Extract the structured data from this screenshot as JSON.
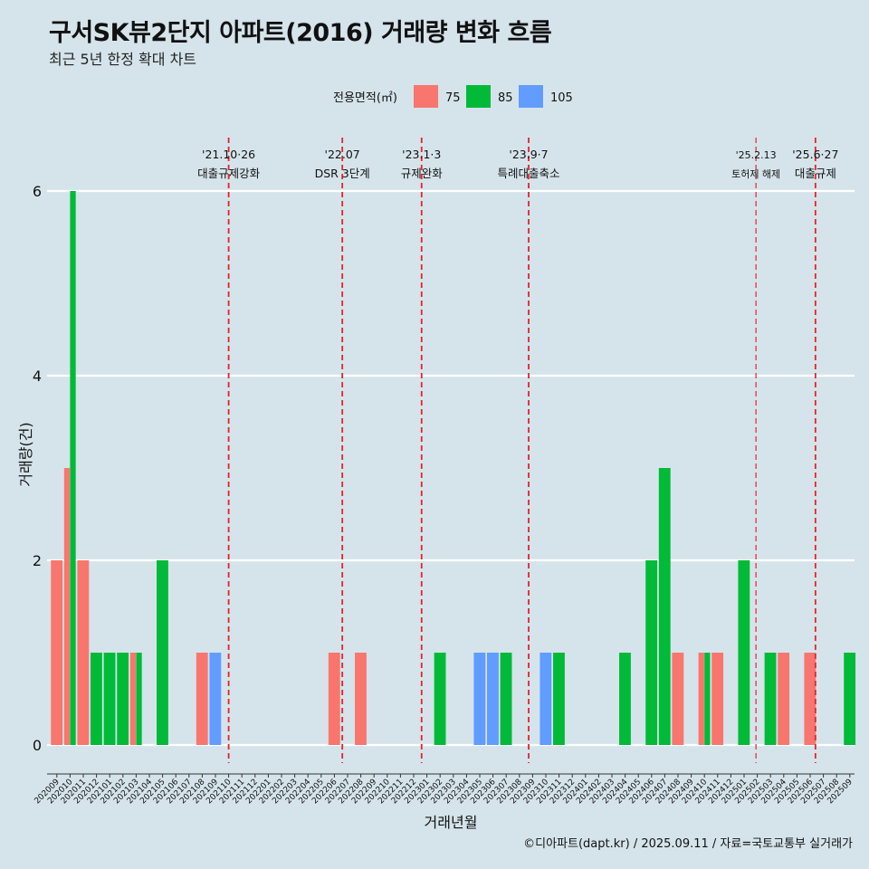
{
  "title": "구서SK뷰2단지 아파트(2016) 거래량 변화 흐름",
  "subtitle": "최근 5년 한정 확대 차트",
  "caption": "©디아파트(dapt.kr) / 2025.09.11 / 자료=국토교통부 실거래가",
  "chart_data": {
    "type": "bar",
    "xlabel": "거래년월",
    "ylabel": "거래량(건)",
    "ylim": [
      0,
      6
    ],
    "yticks": [
      0,
      2,
      4,
      6
    ],
    "legend": {
      "title": "전용면적(㎡)",
      "position": "top",
      "entries": [
        {
          "name": "75",
          "color": "#f8766d"
        },
        {
          "name": "85",
          "color": "#00ba38"
        },
        {
          "name": "105",
          "color": "#619cff"
        }
      ]
    },
    "categories": [
      "202009",
      "202010",
      "202011",
      "202012",
      "202101",
      "202102",
      "202103",
      "202104",
      "202105",
      "202106",
      "202107",
      "202108",
      "202109",
      "202110",
      "202111",
      "202112",
      "202201",
      "202202",
      "202203",
      "202204",
      "202205",
      "202206",
      "202207",
      "202208",
      "202209",
      "202210",
      "202211",
      "202212",
      "202301",
      "202302",
      "202303",
      "202304",
      "202305",
      "202306",
      "202307",
      "202308",
      "202309",
      "202310",
      "202311",
      "202312",
      "202401",
      "202402",
      "202403",
      "202404",
      "202405",
      "202406",
      "202407",
      "202408",
      "202409",
      "202410",
      "202411",
      "202412",
      "202501",
      "202502",
      "202503",
      "202504",
      "202505",
      "202506",
      "202507",
      "202508",
      "202509"
    ],
    "series": [
      {
        "name": "75",
        "color": "#f8766d",
        "values": [
          2,
          3,
          2,
          0,
          0,
          0,
          1,
          0,
          0,
          0,
          0,
          1,
          0,
          0,
          0,
          0,
          0,
          0,
          0,
          0,
          0,
          1,
          0,
          1,
          0,
          0,
          0,
          0,
          0,
          0,
          0,
          0,
          0,
          0,
          0,
          0,
          0,
          0,
          0,
          0,
          0,
          0,
          0,
          0,
          0,
          0,
          0,
          1,
          0,
          1,
          1,
          0,
          0,
          0,
          0,
          1,
          0,
          1,
          0,
          0,
          0
        ]
      },
      {
        "name": "85",
        "color": "#00ba38",
        "values": [
          0,
          6,
          0,
          1,
          1,
          1,
          1,
          0,
          2,
          0,
          0,
          0,
          0,
          0,
          0,
          0,
          0,
          0,
          0,
          0,
          0,
          0,
          0,
          0,
          0,
          0,
          0,
          0,
          0,
          1,
          0,
          0,
          0,
          0,
          1,
          0,
          0,
          0,
          1,
          0,
          0,
          0,
          0,
          1,
          0,
          2,
          3,
          0,
          0,
          1,
          0,
          0,
          2,
          0,
          1,
          0,
          0,
          0,
          0,
          0,
          1
        ]
      },
      {
        "name": "105",
        "color": "#619cff",
        "values": [
          0,
          0,
          0,
          0,
          0,
          0,
          0,
          0,
          0,
          0,
          0,
          0,
          1,
          0,
          0,
          0,
          0,
          0,
          0,
          0,
          0,
          0,
          0,
          0,
          0,
          0,
          0,
          0,
          0,
          0,
          0,
          0,
          1,
          1,
          0,
          0,
          0,
          1,
          0,
          0,
          0,
          0,
          0,
          0,
          0,
          0,
          0,
          0,
          0,
          0,
          0,
          0,
          0,
          0,
          0,
          0,
          0,
          0,
          0,
          0,
          0
        ]
      }
    ],
    "annotations": [
      {
        "month": "202110",
        "offset": 0.5,
        "label1": "'21.10·26",
        "label2": "대출규제강화",
        "small": false
      },
      {
        "month": "202207",
        "offset": 0.1,
        "label1": "'22.07",
        "label2": "DSR 3단계",
        "small": false
      },
      {
        "month": "202301",
        "offset": 0.1,
        "label1": "'23.1·3",
        "label2": "규제완화",
        "small": false
      },
      {
        "month": "202309",
        "offset": 0.2,
        "label1": "'23.9·7",
        "label2": "특례대출축소",
        "small": false
      },
      {
        "month": "202502",
        "offset": 0.4,
        "label1": "'25.2.13",
        "label2": "토허제 해제",
        "small": true
      },
      {
        "month": "202506",
        "offset": 0.9,
        "label1": "'25.6·27",
        "label2": "대출규제",
        "small": false
      }
    ]
  }
}
